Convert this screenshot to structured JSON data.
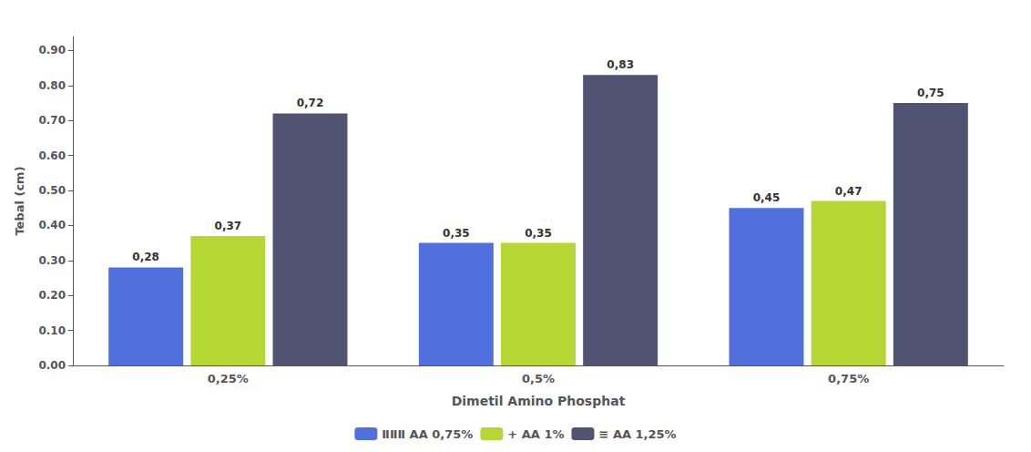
{
  "chart_data": {
    "type": "bar",
    "xlabel": "Dimetil Amino Phosphat",
    "ylabel": "Tebal (cm)",
    "categories": [
      "0,25%",
      "0,5%",
      "0,75%"
    ],
    "series": [
      {
        "name": "ⅡⅡⅡ AA 0,75%",
        "values": [
          0.28,
          0.35,
          0.45
        ],
        "value_labels": [
          "0,28",
          "0,35",
          "0,45"
        ]
      },
      {
        "name": "+ AA 1%",
        "values": [
          0.37,
          0.35,
          0.47
        ],
        "value_labels": [
          "0,37",
          "0,35",
          "0,47"
        ]
      },
      {
        "name": "≡ AA 1,25%",
        "values": [
          0.72,
          0.83,
          0.75
        ],
        "value_labels": [
          "0,72",
          "0,83",
          "0,75"
        ]
      }
    ],
    "ylim": [
      0.0,
      0.94
    ],
    "yticks": [
      {
        "value": 0.0,
        "label": "0.00"
      },
      {
        "value": 0.1,
        "label": "0.10"
      },
      {
        "value": 0.2,
        "label": "0.20"
      },
      {
        "value": 0.3,
        "label": "0.30"
      },
      {
        "value": 0.4,
        "label": "0.40"
      },
      {
        "value": 0.5,
        "label": "0.50"
      },
      {
        "value": 0.6,
        "label": "0.60"
      },
      {
        "value": 0.7,
        "label": "0.70"
      },
      {
        "value": 0.8,
        "label": "0.80"
      },
      {
        "value": 0.9,
        "label": "0.90"
      }
    ],
    "grid": false,
    "legend": "bottom",
    "data_labels": true
  }
}
